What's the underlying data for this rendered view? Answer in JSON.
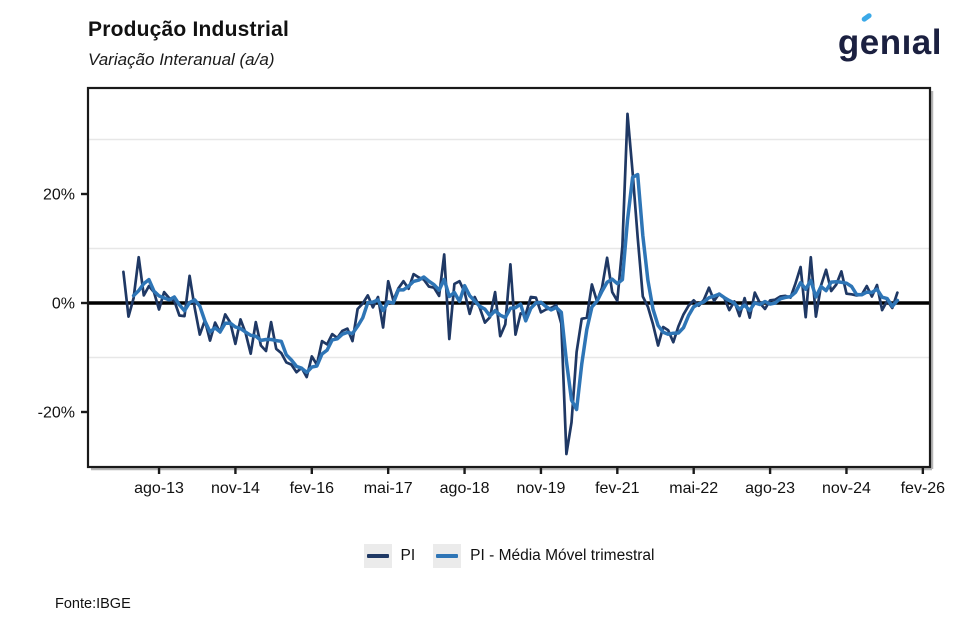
{
  "header": {
    "title": "Produção Industrial",
    "subtitle": "Variação Interanual (a/a)"
  },
  "logo": {
    "wordmark": "genıal",
    "navy": "#1b2040",
    "accent_blue": "#3aa9e8"
  },
  "footer": {
    "source": "Fonte:IBGE"
  },
  "legend": [
    {
      "label": "PI",
      "color": "#1F3864"
    },
    {
      "label": "PI - Média Móvel trimestral",
      "color": "#2E75B6"
    }
  ],
  "chart_data": {
    "type": "line",
    "title": "Produção Industrial",
    "subtitle": "Variação Interanual (a/a)",
    "xlabel": "",
    "ylabel": "",
    "x_start": "jan-13",
    "frequency": "monthly",
    "ylim": [
      -30.1,
      39.4
    ],
    "grid": "minor horizontal only",
    "gridline_values": [
      30,
      10,
      -10
    ],
    "zero_line": {
      "value": 0,
      "color": "#000000"
    },
    "y_ticks": [
      {
        "label": "20%",
        "value": 20
      },
      {
        "label": "0%",
        "value": 0
      },
      {
        "label": "-20%",
        "value": -20
      }
    ],
    "x_ticks": [
      {
        "label": "ago-13",
        "month_index": 7
      },
      {
        "label": "nov-14",
        "month_index": 22
      },
      {
        "label": "fev-16",
        "month_index": 37
      },
      {
        "label": "mai-17",
        "month_index": 52
      },
      {
        "label": "ago-18",
        "month_index": 67
      },
      {
        "label": "nov-19",
        "month_index": 82
      },
      {
        "label": "fev-21",
        "month_index": 97
      },
      {
        "label": "mai-22",
        "month_index": 112
      },
      {
        "label": "ago-23",
        "month_index": 127
      },
      {
        "label": "nov-24",
        "month_index": 142
      },
      {
        "label": "fev-26",
        "month_index": 157
      }
    ],
    "legend_position": "bottom center",
    "series": [
      {
        "name": "PI",
        "color": "#1F3864",
        "values": [
          5.7,
          -2.5,
          0.9,
          8.4,
          1.4,
          3.1,
          2.0,
          -1.2,
          2.0,
          0.9,
          0.4,
          -2.3,
          -2.4,
          5.0,
          -0.9,
          -5.8,
          -3.2,
          -6.9,
          -3.6,
          -5.4,
          -2.1,
          -3.6,
          -7.5,
          -3.0,
          -5.5,
          -9.3,
          -3.5,
          -7.8,
          -8.8,
          -3.5,
          -8.4,
          -9.2,
          -10.9,
          -11.3,
          -12.7,
          -11.9,
          -13.6,
          -9.8,
          -11.3,
          -7.0,
          -7.6,
          -5.7,
          -6.4,
          -5.1,
          -4.7,
          -7.0,
          -1.1,
          -0.1,
          1.4,
          -0.8,
          1.1,
          -4.5,
          4.0,
          0.5,
          2.7,
          4.0,
          2.6,
          5.3,
          4.7,
          4.3,
          3.0,
          2.8,
          1.3,
          8.9,
          -6.6,
          3.5,
          4.0,
          2.0,
          -2.0,
          1.1,
          -0.9,
          -3.6,
          -2.6,
          2.0,
          -6.1,
          -3.9,
          7.1,
          -5.8,
          -1.9,
          -2.1,
          1.1,
          1.0,
          -1.7,
          -1.2,
          -0.9,
          -0.4,
          -3.8,
          -27.7,
          -21.9,
          -9.0,
          -2.9,
          -2.7,
          3.4,
          0.3,
          2.8,
          8.3,
          2.0,
          0.4,
          10.5,
          34.7,
          24.0,
          12.0,
          1.2,
          -0.7,
          -3.9,
          -7.8,
          -4.4,
          -5.0,
          -7.2,
          -4.3,
          -2.1,
          -0.5,
          0.5,
          -0.5,
          0.6,
          2.8,
          0.4,
          1.7,
          0.9,
          -1.3,
          0.3,
          -2.4,
          0.9,
          -2.7,
          1.9,
          0.0,
          -1.1,
          0.5,
          0.6,
          1.2,
          1.3,
          1.0,
          3.6,
          6.6,
          -2.6,
          8.4,
          -2.5,
          3.2,
          6.1,
          2.2,
          3.4,
          5.8,
          1.7,
          1.6,
          1.4,
          1.5,
          3.1,
          1.2,
          3.3,
          -1.3,
          0.4,
          -0.9,
          1.9
        ]
      },
      {
        "name": "PI - Média Móvel trimestral",
        "color": "#2E75B6",
        "derived": "trailing 3-month moving average of PI"
      }
    ]
  }
}
